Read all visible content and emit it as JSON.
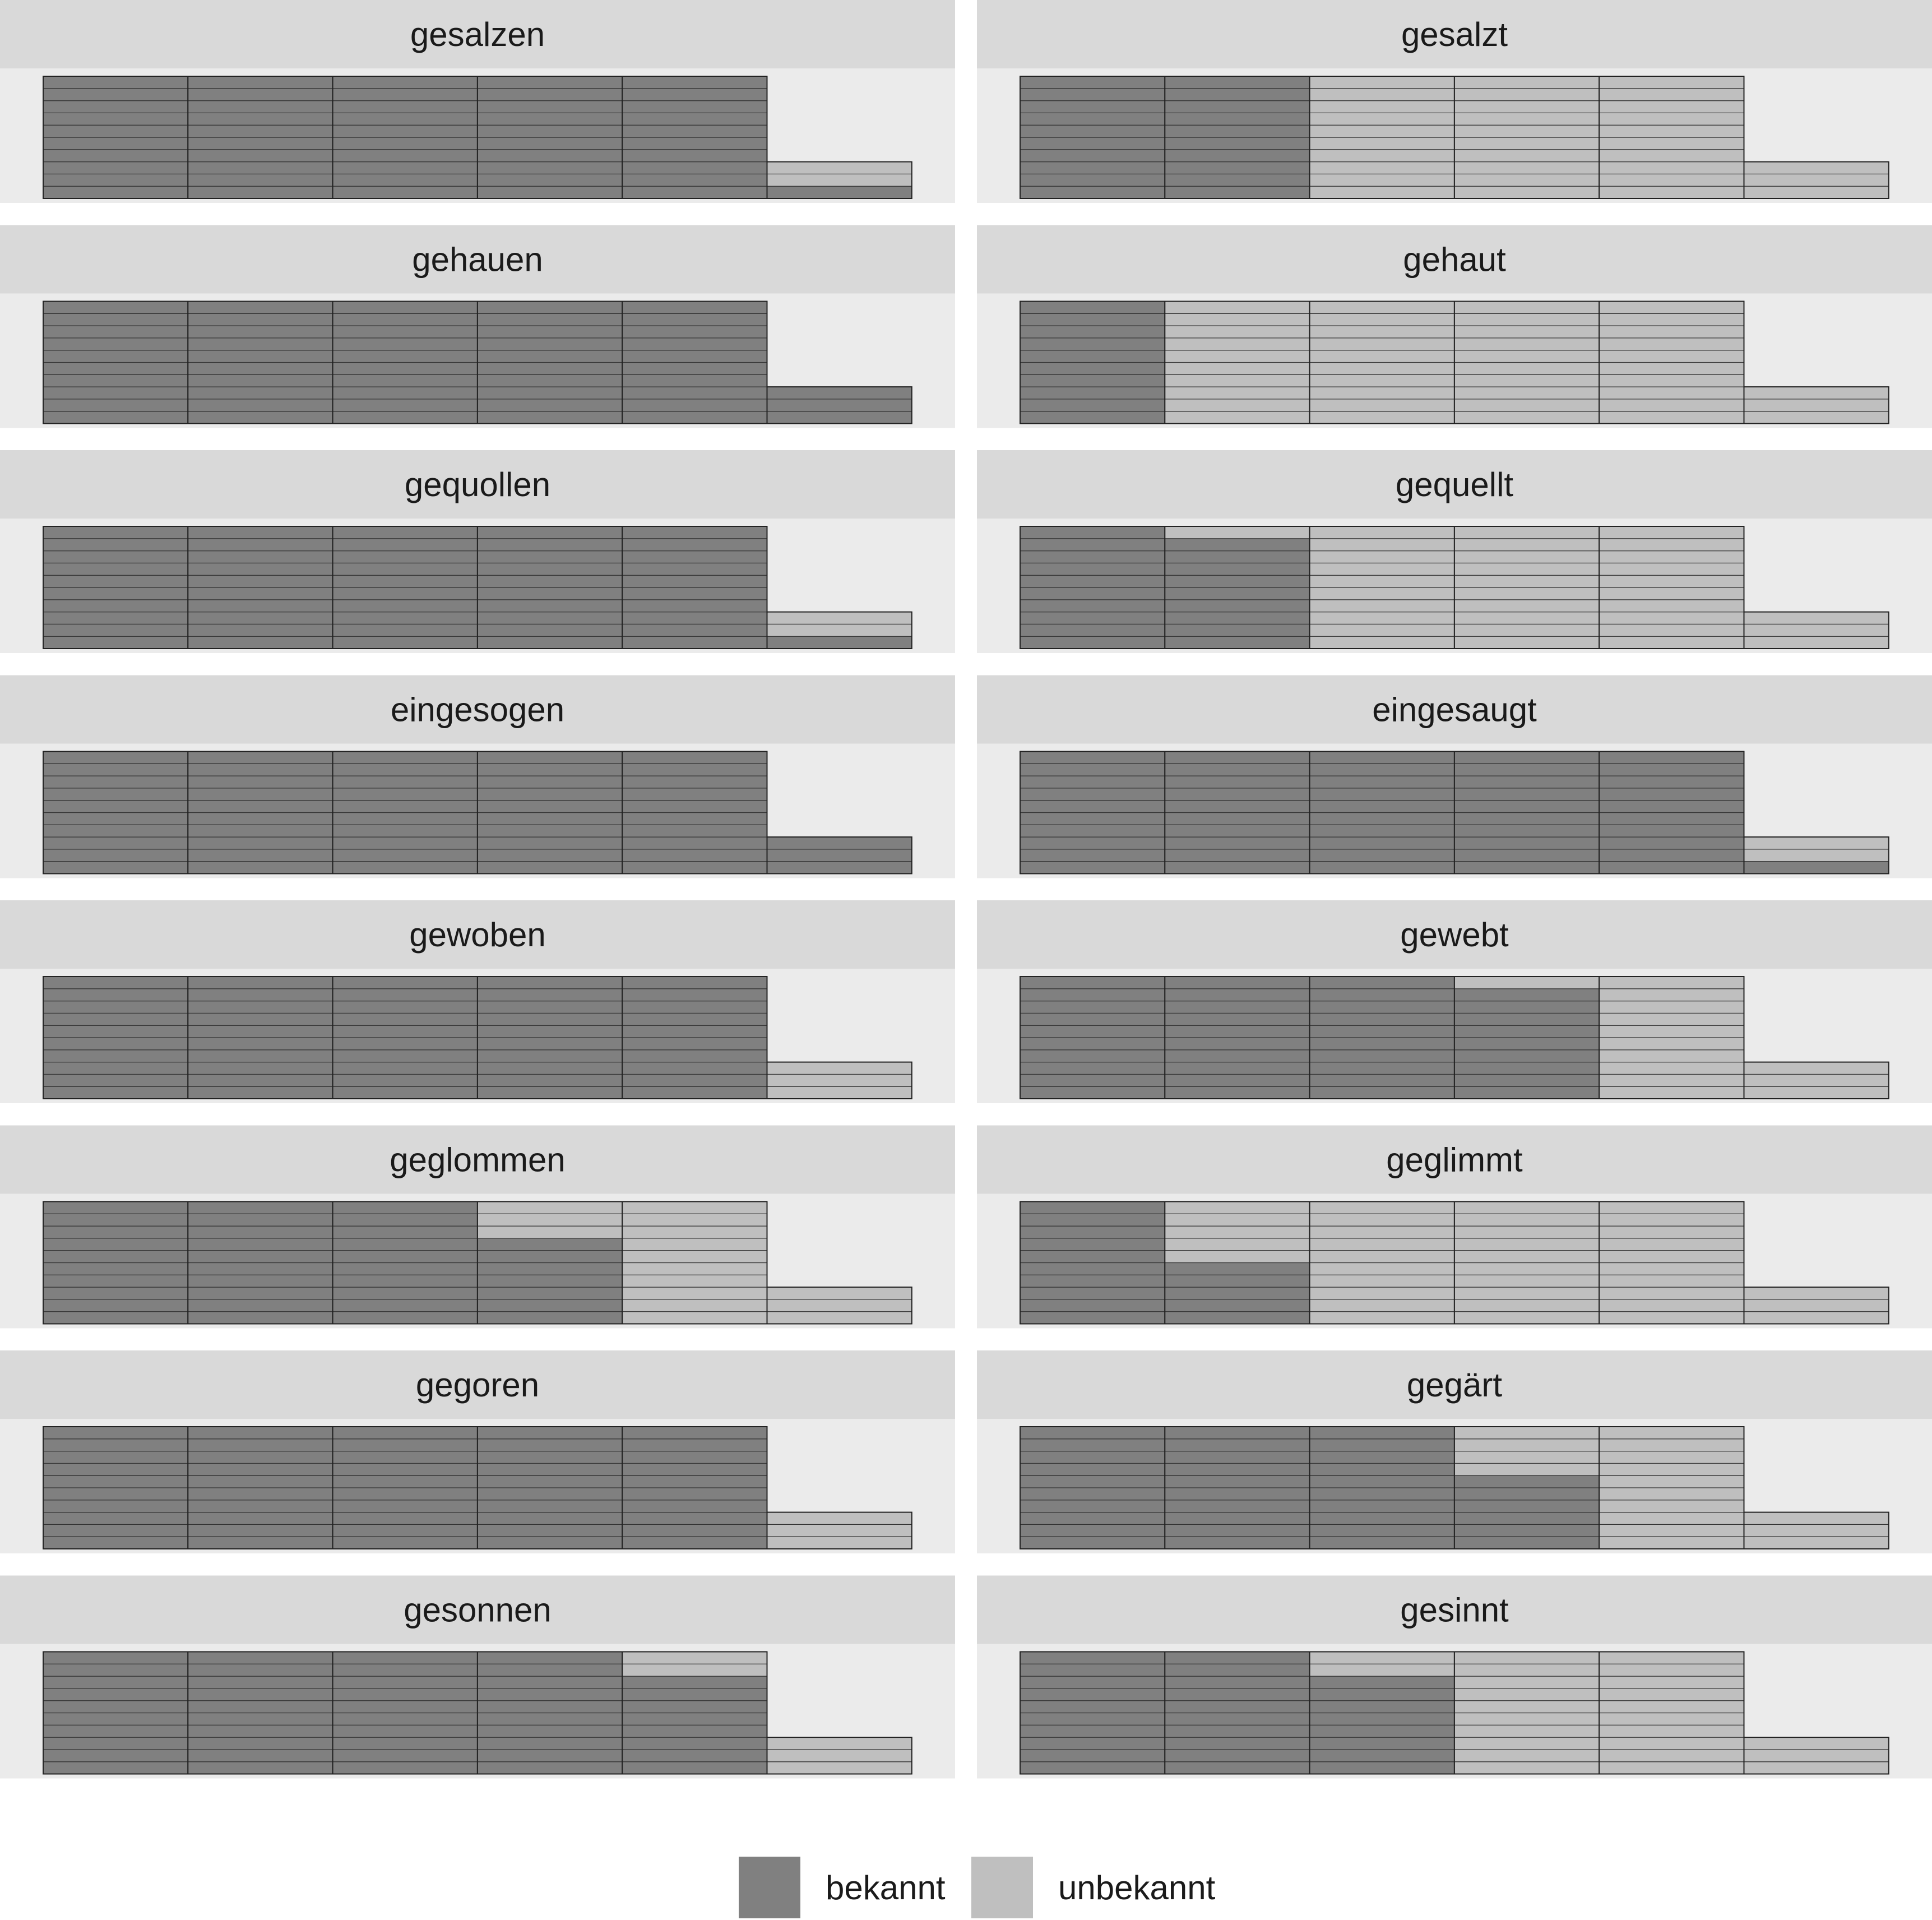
{
  "chart_data": {
    "type": "bar",
    "layout": "waffle facets, 8 rows x 2 columns",
    "colors": {
      "bekannt": "#808080",
      "unbekannt": "#bfbfbf",
      "panel_bg": "#ebebeb",
      "strip_bg": "#d9d9d9",
      "outline": "#333333"
    },
    "legend": {
      "position": "bottom",
      "items": [
        {
          "key": "bekannt",
          "label": "bekannt"
        },
        {
          "key": "unbekannt",
          "label": "unbekannt"
        }
      ]
    },
    "stack_order": [
      "bekannt",
      "unbekannt"
    ],
    "panels": [
      {
        "title": "gesalzen",
        "bekannt": [
          10,
          10,
          10,
          10,
          10,
          1
        ],
        "unbekannt": [
          0,
          0,
          0,
          0,
          0,
          2
        ]
      },
      {
        "title": "gesalzt",
        "bekannt": [
          10,
          10,
          0,
          0,
          0,
          0
        ],
        "unbekannt": [
          0,
          0,
          10,
          10,
          10,
          3
        ]
      },
      {
        "title": "gehauen",
        "bekannt": [
          10,
          10,
          10,
          10,
          10,
          3
        ],
        "unbekannt": [
          0,
          0,
          0,
          0,
          0,
          0
        ]
      },
      {
        "title": "gehaut",
        "bekannt": [
          10,
          0,
          0,
          0,
          0,
          0
        ],
        "unbekannt": [
          0,
          10,
          10,
          10,
          10,
          3
        ]
      },
      {
        "title": "gequollen",
        "bekannt": [
          10,
          10,
          10,
          10,
          10,
          1
        ],
        "unbekannt": [
          0,
          0,
          0,
          0,
          0,
          2
        ]
      },
      {
        "title": "gequellt",
        "bekannt": [
          10,
          9,
          0,
          0,
          0,
          0
        ],
        "unbekannt": [
          0,
          1,
          10,
          10,
          10,
          3
        ]
      },
      {
        "title": "eingesogen",
        "bekannt": [
          10,
          10,
          10,
          10,
          10,
          3
        ],
        "unbekannt": [
          0,
          0,
          0,
          0,
          0,
          0
        ]
      },
      {
        "title": "eingesaugt",
        "bekannt": [
          10,
          10,
          10,
          10,
          10,
          1
        ],
        "unbekannt": [
          0,
          0,
          0,
          0,
          0,
          2
        ]
      },
      {
        "title": "gewoben",
        "bekannt": [
          10,
          10,
          10,
          10,
          10,
          0
        ],
        "unbekannt": [
          0,
          0,
          0,
          0,
          0,
          3
        ]
      },
      {
        "title": "gewebt",
        "bekannt": [
          10,
          10,
          10,
          9,
          0,
          0
        ],
        "unbekannt": [
          0,
          0,
          0,
          1,
          10,
          3
        ]
      },
      {
        "title": "geglommen",
        "bekannt": [
          10,
          10,
          10,
          7,
          0,
          0
        ],
        "unbekannt": [
          0,
          0,
          0,
          3,
          10,
          3
        ]
      },
      {
        "title": "geglimmt",
        "bekannt": [
          10,
          5,
          0,
          0,
          0,
          0
        ],
        "unbekannt": [
          0,
          5,
          10,
          10,
          10,
          3
        ]
      },
      {
        "title": "gegoren",
        "bekannt": [
          10,
          10,
          10,
          10,
          10,
          0
        ],
        "unbekannt": [
          0,
          0,
          0,
          0,
          0,
          3
        ]
      },
      {
        "title": "gegärt",
        "bekannt": [
          10,
          10,
          10,
          6,
          0,
          0
        ],
        "unbekannt": [
          0,
          0,
          0,
          4,
          10,
          3
        ]
      },
      {
        "title": "gesonnen",
        "bekannt": [
          10,
          10,
          10,
          10,
          8,
          0
        ],
        "unbekannt": [
          0,
          0,
          0,
          0,
          2,
          3
        ]
      },
      {
        "title": "gesinnt",
        "bekannt": [
          10,
          10,
          8,
          0,
          0,
          0
        ],
        "unbekannt": [
          0,
          0,
          2,
          10,
          10,
          3
        ]
      }
    ]
  }
}
